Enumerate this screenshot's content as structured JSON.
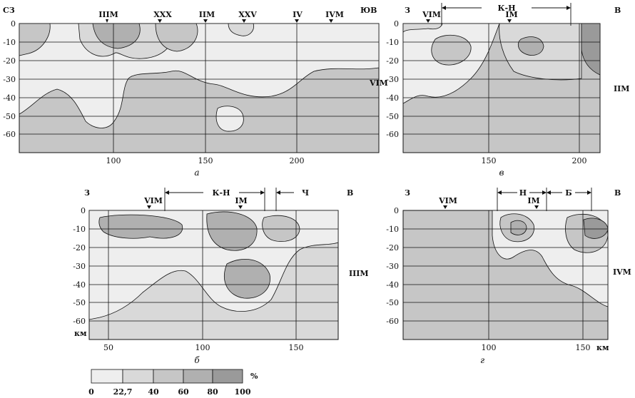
{
  "panels": {
    "a": {
      "caption": "а",
      "left_dir": "СЗ",
      "right_dir": "ЮВ",
      "side_label": "VIM",
      "top_markers": [
        "IIIM",
        "XXX",
        "IIM",
        "XXV",
        "IV",
        "IVM"
      ],
      "x_ticks": [
        "100",
        "150",
        "200"
      ],
      "y_ticks": [
        "0",
        "-10",
        "-20",
        "-30",
        "-40",
        "-50",
        "-60"
      ]
    },
    "v": {
      "caption": "в",
      "left_dir": "З",
      "right_dir": "В",
      "side_label": "IIM",
      "top_markers": [
        "VIM",
        "IM"
      ],
      "ranges": [
        "К-Н"
      ],
      "x_ticks": [
        "150",
        "200"
      ],
      "y_ticks": [
        "0",
        "-10",
        "-20",
        "-30",
        "-40",
        "-50",
        "-60"
      ]
    },
    "b": {
      "caption": "б",
      "left_dir": "З",
      "right_dir": "В",
      "side_label": "IIIM",
      "top_markers": [
        "VIM",
        "IM"
      ],
      "ranges": [
        "К-Н",
        "Ч"
      ],
      "x_ticks": [
        "50",
        "100",
        "150"
      ],
      "y_ticks": [
        "0",
        "-10",
        "-20",
        "-30",
        "-40",
        "-50",
        "-60"
      ],
      "y_unit": "км"
    },
    "g": {
      "caption": "г",
      "left_dir": "З",
      "right_dir": "В",
      "side_label": "IVM",
      "top_markers": [
        "VIM",
        "IM"
      ],
      "ranges": [
        "Н",
        "Б"
      ],
      "x_ticks": [
        "100",
        "150"
      ],
      "x_unit": "км",
      "y_ticks": [
        "0",
        "-10",
        "-20",
        "-30",
        "-40",
        "-50",
        "-60"
      ]
    }
  },
  "legend": {
    "unit": "%",
    "labels": [
      "0",
      "22,7",
      "40",
      "60",
      "80",
      "100"
    ],
    "colors": [
      "#eeeeee",
      "#d9d9d9",
      "#c6c6c6",
      "#b0b0b0",
      "#9a9a9a"
    ]
  }
}
